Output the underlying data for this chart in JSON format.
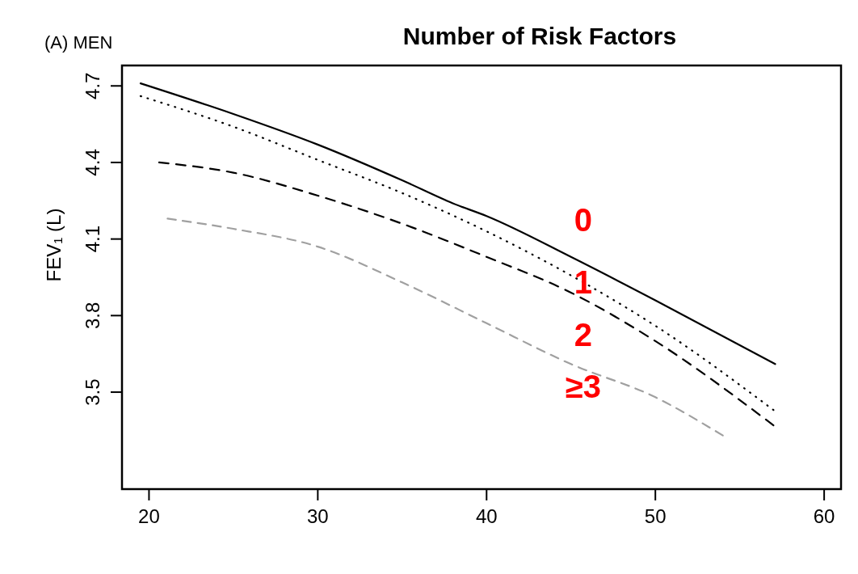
{
  "chart_data": {
    "type": "line",
    "title": "Number of Risk Factors",
    "annotations": [
      "(A) MEN"
    ],
    "ylabel": "FEV₁ (L)",
    "xlim": [
      18.4,
      61
    ],
    "xticks": [
      20,
      30,
      40,
      50,
      60
    ],
    "ylim": [
      3.12,
      4.78
    ],
    "yticks": [
      3.5,
      3.8,
      4.1,
      4.4,
      4.7
    ],
    "series": [
      {
        "name": "0",
        "color": "#000000",
        "line_style": "solid",
        "x": [
          19.5,
          25,
          30,
          35,
          38,
          40,
          45,
          50,
          57.1
        ],
        "values": [
          4.71,
          4.59,
          4.47,
          4.33,
          4.24,
          4.19,
          4.03,
          3.86,
          3.61
        ]
      },
      {
        "name": "1",
        "color": "#000000",
        "line_style": "dotted",
        "x": [
          19.5,
          25,
          30,
          35,
          40,
          46,
          50,
          57
        ],
        "values": [
          4.66,
          4.54,
          4.41,
          4.28,
          4.13,
          3.92,
          3.76,
          3.43
        ]
      },
      {
        "name": "2",
        "color": "#000000",
        "line_style": "dashed",
        "x": [
          20.6,
          25,
          30,
          35,
          40,
          45,
          50,
          57
        ],
        "values": [
          4.4,
          4.36,
          4.27,
          4.16,
          4.03,
          3.89,
          3.7,
          3.37
        ]
      },
      {
        "name": "≥3",
        "color": "#a0a0a0",
        "line_style": "dashed",
        "x": [
          21.1,
          25,
          30,
          35,
          40,
          45,
          50,
          54
        ],
        "values": [
          4.18,
          4.14,
          4.07,
          3.93,
          3.77,
          3.61,
          3.48,
          3.33
        ]
      }
    ]
  }
}
